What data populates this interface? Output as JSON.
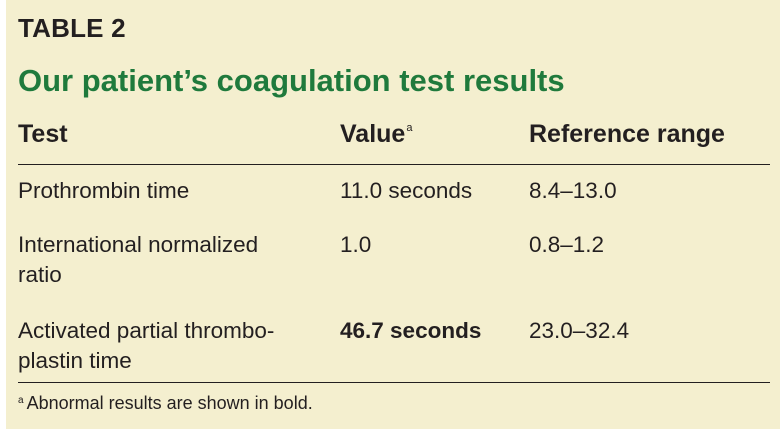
{
  "table": {
    "label": "TABLE 2",
    "title": "Our patient’s coagulation test results",
    "colors": {
      "background": "#f4efcf",
      "title": "#1f7a3c",
      "text": "#231f20"
    },
    "headers": {
      "test": "Test",
      "value": "Value",
      "value_marker": "a",
      "reference": "Reference range"
    },
    "rows": [
      {
        "test_line1": "Prothrombin time",
        "test_line2": "",
        "value": "11.0 seconds",
        "reference": "8.4–13.0"
      },
      {
        "test_line1": "International normalized",
        "test_line2": "ratio",
        "value": "1.0",
        "reference": "0.8–1.2"
      },
      {
        "test_line1": "Activated partial thrombo-",
        "test_line2": "plastin time",
        "value": "46.7 seconds",
        "reference": "23.0–32.4"
      }
    ],
    "footnote": {
      "marker": "a",
      "text": "Abnormal results are shown in bold."
    }
  }
}
